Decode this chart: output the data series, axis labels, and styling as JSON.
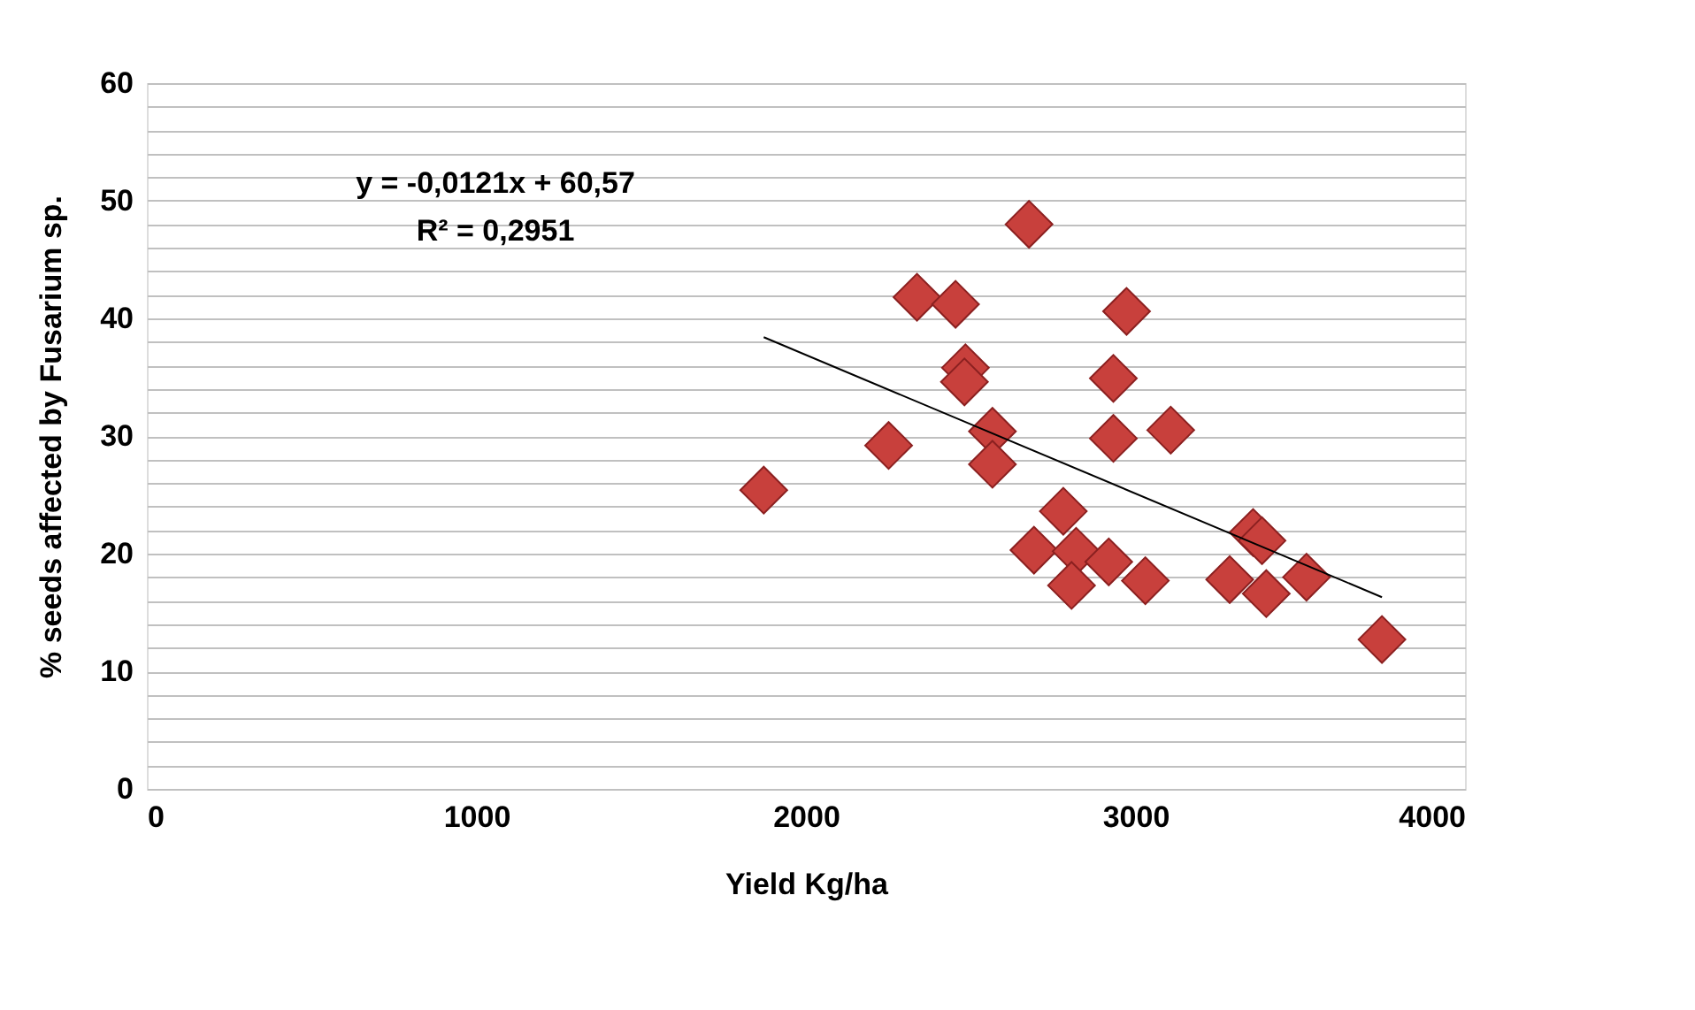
{
  "chart_data": {
    "type": "scatter",
    "xlabel": "Yield Kg/ha",
    "ylabel": "% seeds affected by Fusarium sp.",
    "x": [
      1872,
      2251,
      2337,
      2454,
      2484,
      2481,
      2566,
      2566,
      2677,
      2973,
      2933,
      2933,
      3107,
      2781,
      2692,
      2820,
      2919,
      2806,
      3030,
      3357,
      3384,
      3286,
      3397,
      3519,
      3748
    ],
    "series": [
      {
        "type": "scatter",
        "color": "#c8403c",
        "marker": "diamond",
        "values": [
          25.4,
          29.2,
          41.8,
          41.2,
          35.8,
          34.6,
          30.4,
          27.6,
          48.0,
          40.6,
          34.9,
          29.8,
          30.5,
          23.6,
          20.3,
          20.2,
          19.3,
          17.3,
          17.7,
          21.8,
          21.1,
          17.8,
          16.6,
          18.0,
          12.7
        ]
      },
      {
        "type": "line",
        "color": "#000000",
        "x": [
          1872,
          3748
        ],
        "values": [
          38.4,
          16.3
        ]
      }
    ],
    "annotations": [
      "y = -0,0121x + 60,57",
      "R² = 0,2951"
    ],
    "xlim": [
      0,
      4000
    ],
    "xticks": [
      0,
      1000,
      2000,
      3000,
      4000
    ],
    "ylim": [
      0,
      60
    ],
    "yticks": [
      0,
      {
        "value": 2,
        "label": null
      },
      {
        "value": 4,
        "label": null
      },
      {
        "value": 6,
        "label": null
      },
      {
        "value": 8,
        "label": null
      },
      10,
      {
        "value": 12,
        "label": null
      },
      {
        "value": 14,
        "label": null
      },
      {
        "value": 16,
        "label": null
      },
      {
        "value": 18,
        "label": null
      },
      20,
      {
        "value": 22,
        "label": null
      },
      {
        "value": 24,
        "label": null
      },
      {
        "value": 26,
        "label": null
      },
      {
        "value": 28,
        "label": null
      },
      30,
      {
        "value": 32,
        "label": null
      },
      {
        "value": 34,
        "label": null
      },
      {
        "value": 36,
        "label": null
      },
      {
        "value": 38,
        "label": null
      },
      40,
      {
        "value": 42,
        "label": null
      },
      {
        "value": 44,
        "label": null
      },
      {
        "value": 46,
        "label": null
      },
      {
        "value": 48,
        "label": null
      },
      50,
      {
        "value": 52,
        "label": null
      },
      {
        "value": 54,
        "label": null
      },
      {
        "value": 56,
        "label": null
      },
      {
        "value": 58,
        "label": null
      },
      60
    ],
    "grid": "y"
  }
}
